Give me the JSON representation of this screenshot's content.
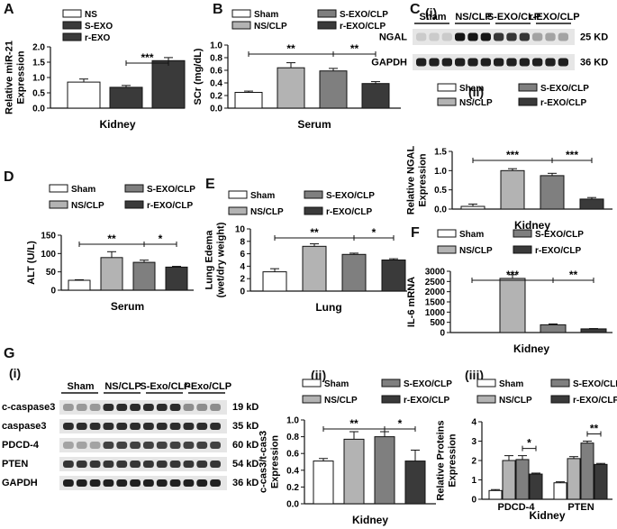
{
  "panel_labels": {
    "A": "A",
    "B": "B",
    "C": "C",
    "C_i": "(i)",
    "C_ii": "(ii)",
    "D": "D",
    "E": "E",
    "F": "F",
    "G": "G",
    "G_i": "(i)",
    "G_ii": "(ii)",
    "G_iii": "(iii)"
  },
  "colors": {
    "white": "#ffffff",
    "light": "#b3b3b3",
    "mid": "#7f7f7f",
    "dark": "#3a3a3a"
  },
  "chart_data": [
    {
      "id": "A",
      "type": "bar",
      "categories": [
        "NS",
        "S-EXO",
        "r-EXO"
      ],
      "values": [
        0.85,
        0.68,
        1.55
      ],
      "errors": [
        0.1,
        0.06,
        0.1
      ],
      "colors": [
        "#ffffff",
        "#3a3a3a",
        "#3a3a3a"
      ],
      "legend": [
        "NS",
        "S-EXO",
        "r-EXO"
      ],
      "ylabel": "Relative miR-21\nExpression",
      "xlabel": "Kidney",
      "ylim": [
        0,
        2.0
      ],
      "yticks": [
        "0.0",
        "0.5",
        "1.0",
        "1.5",
        "2.0"
      ],
      "sig": [
        {
          "from": 1,
          "to": 2,
          "label": "***"
        }
      ]
    },
    {
      "id": "B",
      "type": "bar",
      "categories": [
        "Sham",
        "NS/CLP",
        "S-EXO/CLP",
        "r-EXO/CLP"
      ],
      "values": [
        0.25,
        0.64,
        0.59,
        0.39
      ],
      "errors": [
        0.02,
        0.08,
        0.04,
        0.03
      ],
      "legend": [
        "Sham",
        "NS/CLP",
        "S-EXO/CLP",
        "r-EXO/CLP"
      ],
      "ylabel": "SCr (mg/dL)",
      "xlabel": "Serum",
      "ylim": [
        0,
        1.0
      ],
      "yticks": [
        "0.0",
        "0.2",
        "0.4",
        "0.6",
        "0.8",
        "1.0"
      ],
      "sig": [
        {
          "from": 0,
          "to": 2,
          "label": "**"
        },
        {
          "from": 2,
          "to": 3,
          "label": "**"
        }
      ]
    },
    {
      "id": "C_ii",
      "type": "bar",
      "categories": [
        "Sham",
        "NS/CLP",
        "S-EXO/CLP",
        "r-EXO/CLP"
      ],
      "values": [
        0.07,
        1.0,
        0.87,
        0.26
      ],
      "errors": [
        0.06,
        0.05,
        0.06,
        0.04
      ],
      "legend": [
        "Sham",
        "NS/CLP",
        "S-EXO/CLP",
        "r-EXO/CLP"
      ],
      "ylabel": "Relative NGAL\nExpression",
      "xlabel": "Kidney",
      "ylim": [
        0,
        1.5
      ],
      "yticks": [
        "0.0",
        "0.5",
        "1.0",
        "1.5"
      ],
      "sig": [
        {
          "from": 0,
          "to": 2,
          "label": "***"
        },
        {
          "from": 2,
          "to": 3,
          "label": "***"
        }
      ]
    },
    {
      "id": "D",
      "type": "bar",
      "categories": [
        "Sham",
        "NS/CLP",
        "S-EXO/CLP",
        "r-EXO/CLP"
      ],
      "values": [
        27,
        89,
        76,
        63
      ],
      "errors": [
        1.5,
        16,
        6,
        2
      ],
      "legend": [
        "Sham",
        "NS/CLP",
        "S-EXO/CLP",
        "r-EXO/CLP"
      ],
      "ylabel": "ALT (U/L)",
      "xlabel": "Serum",
      "ylim": [
        0,
        150
      ],
      "yticks": [
        "0",
        "50",
        "100",
        "150"
      ],
      "sig": [
        {
          "from": 0,
          "to": 2,
          "label": "**"
        },
        {
          "from": 2,
          "to": 3,
          "label": "*"
        }
      ]
    },
    {
      "id": "E",
      "type": "bar",
      "categories": [
        "Sham",
        "NS/CLP",
        "S-EXO/CLP",
        "r-EXO/CLP"
      ],
      "values": [
        3.1,
        7.2,
        5.9,
        5.0
      ],
      "errors": [
        0.5,
        0.4,
        0.2,
        0.2
      ],
      "legend": [
        "Sham",
        "NS/CLP",
        "S-EXO/CLP",
        "r-EXO/CLP"
      ],
      "ylabel": "Lung Edema\n(wet/dry weight)",
      "xlabel": "Lung",
      "ylim": [
        0,
        10
      ],
      "yticks": [
        "0",
        "2",
        "4",
        "6",
        "8",
        "10"
      ],
      "sig": [
        {
          "from": 0,
          "to": 2,
          "label": "**"
        },
        {
          "from": 2,
          "to": 3,
          "label": "*"
        }
      ]
    },
    {
      "id": "F",
      "type": "bar",
      "categories": [
        "Sham",
        "NS/CLP",
        "S-EXO/CLP",
        "r-EXO/CLP"
      ],
      "values": [
        0,
        2650,
        380,
        180
      ],
      "errors": [
        0,
        180,
        40,
        15
      ],
      "legend": [
        "Sham",
        "NS/CLP",
        "S-EXO/CLP",
        "r-EXO/CLP"
      ],
      "ylabel": "IL-6 mRNA",
      "xlabel": "Kidney",
      "ylim": [
        0,
        3000
      ],
      "yticks": [
        "0",
        "500",
        "1000",
        "1500",
        "2000",
        "2500",
        "3000"
      ],
      "sig": [
        {
          "from": 0,
          "to": 2,
          "label": "***"
        },
        {
          "from": 2,
          "to": 3,
          "label": "**"
        }
      ]
    },
    {
      "id": "G_ii",
      "type": "bar",
      "categories": [
        "Sham",
        "NS/CLP",
        "S-EXO/CLP",
        "r-EXO/CLP"
      ],
      "values": [
        0.51,
        0.77,
        0.8,
        0.51
      ],
      "errors": [
        0.03,
        0.09,
        0.06,
        0.13
      ],
      "legend": [
        "Sham",
        "NS/CLP",
        "S-EXO/CLP",
        "r-EXO/CLP"
      ],
      "ylabel": "c-cas3/t-cas3\nExpression",
      "xlabel": "Kidney",
      "ylim": [
        0,
        1.0
      ],
      "yticks": [
        "0.0",
        "0.2",
        "0.4",
        "0.6",
        "0.8",
        "1.0"
      ],
      "sig": [
        {
          "from": 0,
          "to": 2,
          "label": "**"
        },
        {
          "from": 2,
          "to": 3,
          "label": "*"
        }
      ]
    },
    {
      "id": "G_iii",
      "type": "grouped-bar",
      "groups": [
        "PDCD-4",
        "PTEN"
      ],
      "series": [
        {
          "name": "Sham",
          "values": [
            0.45,
            0.85
          ],
          "errors": [
            0.05,
            0.05
          ]
        },
        {
          "name": "NS/CLP",
          "values": [
            2.0,
            2.1
          ],
          "errors": [
            0.25,
            0.1
          ]
        },
        {
          "name": "S-EXO/CLP",
          "values": [
            2.05,
            2.9
          ],
          "errors": [
            0.2,
            0.1
          ]
        },
        {
          "name": "r-EXO/CLP",
          "values": [
            1.3,
            1.8
          ],
          "errors": [
            0.05,
            0.05
          ]
        }
      ],
      "legend": [
        "Sham",
        "NS/CLP",
        "S-EXO/CLP",
        "r-EXO/CLP"
      ],
      "ylabel": "Relative Proteins\nExpression",
      "xlabel": "Kidney",
      "ylim": [
        0,
        4
      ],
      "yticks": [
        "0",
        "1",
        "2",
        "3",
        "4"
      ],
      "sig": [
        {
          "group": 0,
          "from": 2,
          "to": 3,
          "label": "*"
        },
        {
          "group": 1,
          "from": 2,
          "to": 3,
          "label": "**"
        }
      ]
    }
  ],
  "blot_C": {
    "groups": [
      "Sham",
      "NS/CLP",
      "S-EXO/CLP",
      "r-EXO/CLP"
    ],
    "rows": [
      {
        "label": "NGAL",
        "size": "25 KD"
      },
      {
        "label": "GAPDH",
        "size": "36 KD"
      }
    ]
  },
  "blot_G": {
    "groups": [
      "Sham",
      "NS/CLP",
      "S-Exo/CLP",
      "r-Exo/CLP"
    ],
    "rows": [
      {
        "label": "c-caspase3",
        "size": "19 kD"
      },
      {
        "label": "caspase3",
        "size": "35 kD"
      },
      {
        "label": "PDCD-4",
        "size": "60 kD"
      },
      {
        "label": "PTEN",
        "size": "54 kD"
      },
      {
        "label": "GAPDH",
        "size": "36 kD"
      }
    ]
  }
}
